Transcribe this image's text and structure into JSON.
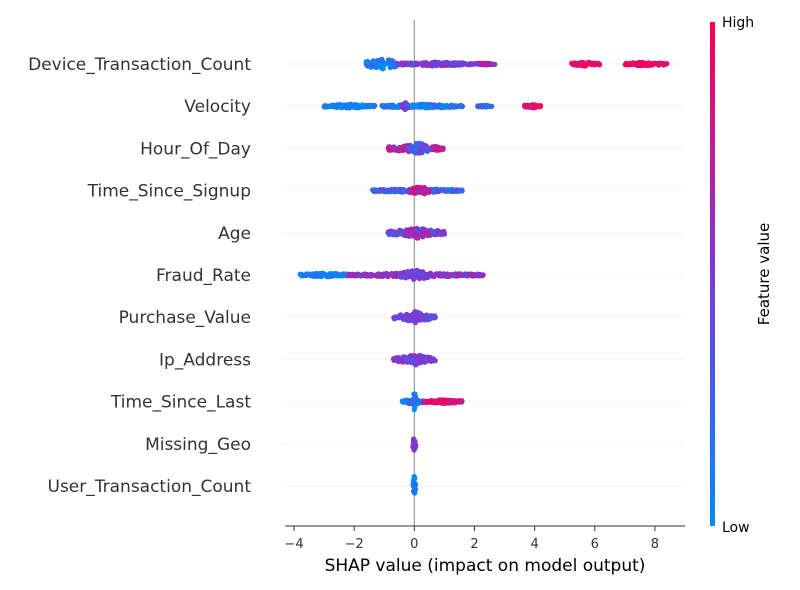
{
  "chart_data": {
    "type": "scatter",
    "subtype": "shap-beeswarm",
    "xlabel": "SHAP value (impact on model output)",
    "xlim": [
      -4.3,
      9.0
    ],
    "xticks": [
      -4,
      -2,
      0,
      2,
      4,
      6,
      8
    ],
    "xtick_labels": [
      "−4",
      "−2",
      "0",
      "2",
      "4",
      "6",
      "8"
    ],
    "colorbar": {
      "title": "Feature value",
      "high_label": "High",
      "low_label": "Low",
      "low_color": "#008bfb",
      "high_color": "#ff0052"
    },
    "features": [
      {
        "name": "Device_Transaction_Count",
        "segments": [
          [
            -1.6,
            -0.6,
            0.1,
            6
          ],
          [
            -0.6,
            1.9,
            0.45,
            2
          ],
          [
            1.9,
            2.7,
            0.65,
            1
          ],
          [
            5.2,
            6.2,
            0.95,
            2
          ],
          [
            7.0,
            8.4,
            0.95,
            2
          ]
        ]
      },
      {
        "name": "Velocity",
        "segments": [
          [
            -3.0,
            -1.3,
            0.05,
            2
          ],
          [
            -1.1,
            1.6,
            0.15,
            2
          ],
          [
            -0.4,
            -0.25,
            0.45,
            5
          ],
          [
            2.1,
            2.6,
            0.25,
            1
          ],
          [
            3.6,
            4.2,
            0.95,
            2
          ]
        ]
      },
      {
        "name": "Hour_Of_Day",
        "segments": [
          [
            -0.9,
            1.0,
            0.7,
            4
          ],
          [
            -0.2,
            0.5,
            0.35,
            6
          ]
        ]
      },
      {
        "name": "Time_Since_Signup",
        "segments": [
          [
            -1.4,
            1.6,
            0.25,
            2
          ],
          [
            -0.2,
            0.5,
            0.75,
            5
          ]
        ]
      },
      {
        "name": "Age",
        "segments": [
          [
            -0.9,
            1.0,
            0.45,
            4
          ],
          [
            -0.3,
            0.5,
            0.6,
            6
          ]
        ]
      },
      {
        "name": "Fraud_Rate",
        "segments": [
          [
            -3.8,
            -2.2,
            0.05,
            2
          ],
          [
            -2.2,
            2.3,
            0.6,
            2
          ],
          [
            -0.5,
            0.6,
            0.5,
            5
          ]
        ]
      },
      {
        "name": "Purchase_Value",
        "segments": [
          [
            -0.7,
            0.7,
            0.45,
            4
          ],
          [
            -0.3,
            0.4,
            0.5,
            6
          ]
        ]
      },
      {
        "name": "Ip_Address",
        "segments": [
          [
            -0.7,
            0.7,
            0.55,
            4
          ],
          [
            -0.3,
            0.4,
            0.45,
            6
          ]
        ]
      },
      {
        "name": "Time_Since_Last",
        "segments": [
          [
            -0.4,
            0.3,
            0.15,
            3
          ],
          [
            0.3,
            1.6,
            0.85,
            2
          ],
          [
            -0.05,
            0.05,
            0.1,
            10
          ]
        ]
      },
      {
        "name": "Missing_Geo",
        "segments": [
          [
            -0.05,
            0.05,
            0.5,
            7
          ]
        ]
      },
      {
        "name": "User_Transaction_Count",
        "segments": [
          [
            -0.05,
            0.05,
            0.05,
            10
          ]
        ]
      }
    ]
  }
}
